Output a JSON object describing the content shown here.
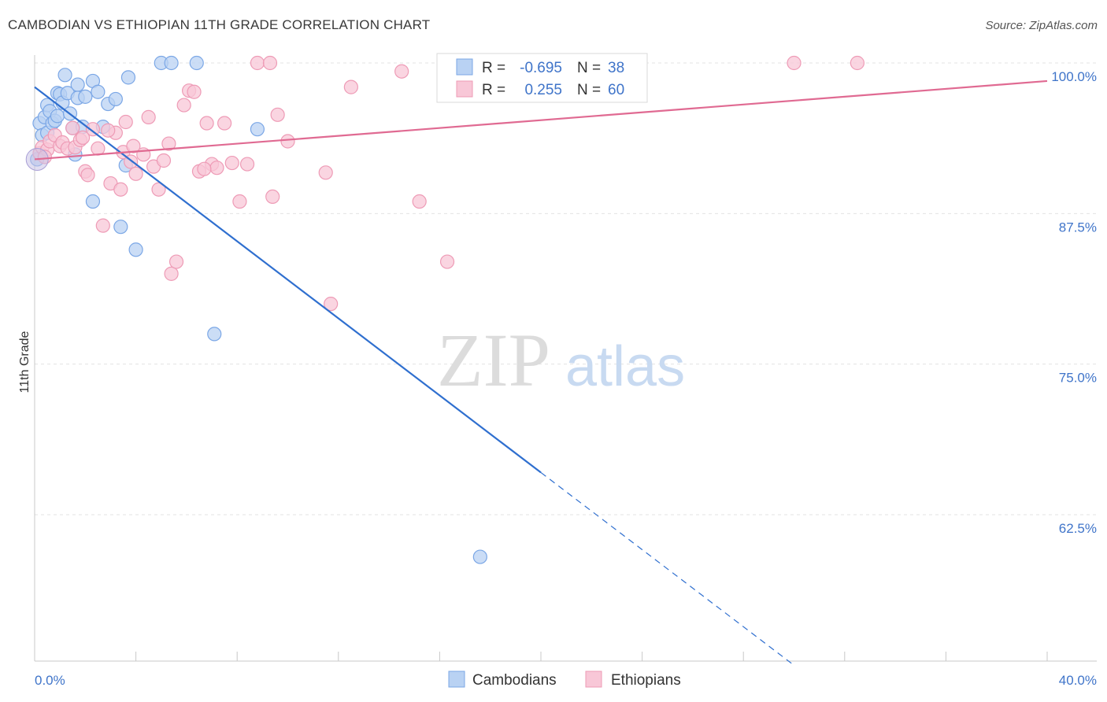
{
  "chart_data": {
    "type": "scatter",
    "title": "CAMBODIAN VS ETHIOPIAN 11TH GRADE CORRELATION CHART",
    "source": "Source: ZipAtlas.com",
    "xlabel": "",
    "ylabel": "11th Grade",
    "xlim": [
      0,
      40
    ],
    "ylim": [
      50.0,
      101.5
    ],
    "x_tick_labels": [
      "0.0%",
      "40.0%"
    ],
    "y_ticks": [
      {
        "value": 100.0,
        "label": "100.0%"
      },
      {
        "value": 87.5,
        "label": "87.5%"
      },
      {
        "value": 75.0,
        "label": "75.0%"
      },
      {
        "value": 62.5,
        "label": "62.5%"
      }
    ],
    "watermark": {
      "zip": "ZIP",
      "atlas": "atlas"
    },
    "legend": {
      "r_label": "R =",
      "n_label": "N =",
      "entries": [
        {
          "r": "-0.695",
          "n": "38"
        },
        {
          "r": "0.255",
          "n": "60"
        }
      ]
    },
    "series": [
      {
        "name": "Cambodians",
        "color": "#7ba7e6",
        "fill": "#b9d2f3",
        "line_color": "#2f6fcf",
        "trend": {
          "x0": 0.0,
          "y0": 98.0,
          "x1": 20.0,
          "y1": 66.0,
          "dash_to_x": 30.0
        },
        "points": [
          [
            0.2,
            95.0
          ],
          [
            0.3,
            94.0
          ],
          [
            0.4,
            95.5
          ],
          [
            0.5,
            94.2
          ],
          [
            0.5,
            96.5
          ],
          [
            0.6,
            96.0
          ],
          [
            0.7,
            95.0
          ],
          [
            0.8,
            95.2
          ],
          [
            0.9,
            95.6
          ],
          [
            0.9,
            97.5
          ],
          [
            1.0,
            97.4
          ],
          [
            1.1,
            96.7
          ],
          [
            1.2,
            99.0
          ],
          [
            1.3,
            97.5
          ],
          [
            1.4,
            95.8
          ],
          [
            1.5,
            94.6
          ],
          [
            1.6,
            92.4
          ],
          [
            1.7,
            98.2
          ],
          [
            1.7,
            97.1
          ],
          [
            1.9,
            94.7
          ],
          [
            2.0,
            97.2
          ],
          [
            2.3,
            98.5
          ],
          [
            2.5,
            97.6
          ],
          [
            2.7,
            94.7
          ],
          [
            2.9,
            96.6
          ],
          [
            3.2,
            97.0
          ],
          [
            3.4,
            86.4
          ],
          [
            3.6,
            91.5
          ],
          [
            3.7,
            98.8
          ],
          [
            4.0,
            84.5
          ],
          [
            5.0,
            100.0
          ],
          [
            5.4,
            100.0
          ],
          [
            6.4,
            100.0
          ],
          [
            7.1,
            77.5
          ],
          [
            8.8,
            94.5
          ],
          [
            2.3,
            88.5
          ],
          [
            17.6,
            59.0
          ],
          [
            0.1,
            92.0
          ]
        ]
      },
      {
        "name": "Ethiopians",
        "color": "#ee9bb6",
        "fill": "#f8c7d7",
        "line_color": "#e06a92",
        "trend": {
          "x0": 0.0,
          "y0": 92.0,
          "x1": 40.0,
          "y1": 98.5
        },
        "points": [
          [
            0.2,
            92.5
          ],
          [
            0.3,
            93.0
          ],
          [
            0.5,
            92.8
          ],
          [
            0.6,
            93.5
          ],
          [
            0.8,
            94.0
          ],
          [
            1.0,
            93.1
          ],
          [
            1.1,
            93.4
          ],
          [
            1.3,
            92.9
          ],
          [
            1.5,
            94.6
          ],
          [
            1.6,
            93.0
          ],
          [
            1.8,
            93.6
          ],
          [
            2.0,
            91.0
          ],
          [
            2.1,
            90.7
          ],
          [
            2.3,
            94.5
          ],
          [
            2.5,
            92.9
          ],
          [
            2.7,
            86.5
          ],
          [
            3.0,
            90.0
          ],
          [
            3.2,
            94.2
          ],
          [
            3.4,
            89.5
          ],
          [
            3.5,
            92.6
          ],
          [
            3.8,
            91.8
          ],
          [
            3.9,
            93.1
          ],
          [
            4.3,
            92.4
          ],
          [
            4.5,
            95.5
          ],
          [
            4.7,
            91.4
          ],
          [
            4.9,
            89.5
          ],
          [
            5.1,
            91.9
          ],
          [
            5.3,
            93.3
          ],
          [
            5.4,
            82.5
          ],
          [
            5.6,
            83.5
          ],
          [
            5.9,
            96.5
          ],
          [
            6.1,
            97.7
          ],
          [
            6.3,
            97.6
          ],
          [
            6.5,
            91.0
          ],
          [
            6.8,
            95.0
          ],
          [
            7.0,
            91.6
          ],
          [
            7.2,
            91.3
          ],
          [
            7.5,
            95.0
          ],
          [
            7.8,
            91.7
          ],
          [
            8.1,
            88.5
          ],
          [
            8.4,
            91.6
          ],
          [
            8.8,
            100.0
          ],
          [
            9.3,
            100.0
          ],
          [
            9.4,
            88.9
          ],
          [
            9.6,
            95.7
          ],
          [
            10.0,
            93.5
          ],
          [
            11.5,
            90.9
          ],
          [
            11.7,
            80.0
          ],
          [
            12.5,
            98.0
          ],
          [
            14.5,
            99.3
          ],
          [
            15.2,
            88.5
          ],
          [
            16.3,
            83.5
          ],
          [
            30.0,
            100.0
          ],
          [
            32.5,
            100.0
          ],
          [
            0.4,
            92.2
          ],
          [
            1.9,
            93.8
          ],
          [
            2.9,
            94.4
          ],
          [
            4.0,
            90.8
          ],
          [
            6.7,
            91.2
          ],
          [
            3.6,
            95.1
          ]
        ]
      }
    ]
  }
}
